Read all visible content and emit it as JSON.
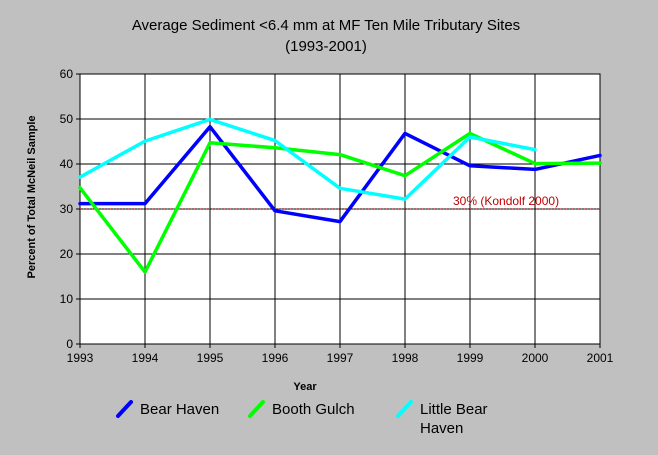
{
  "chart_data": {
    "type": "line",
    "title": "Average Sediment <6.4 mm at MF Ten Mile Tributary Sites",
    "subtitle": "(1993-2001)",
    "xlabel": "Year",
    "ylabel": "Percent of Total McNeil Sample",
    "x": [
      "1993",
      "1994",
      "1995",
      "1996",
      "1997",
      "1998",
      "1999",
      "2000",
      "2001"
    ],
    "yticks": [
      "0",
      "10",
      "20",
      "30",
      "40",
      "50",
      "60"
    ],
    "ylim": [
      0,
      60
    ],
    "grid": true,
    "legend_position": "bottom",
    "series": [
      {
        "name": "Bear Haven",
        "color": "#0000ff",
        "values": [
          31.2,
          31.2,
          48.3,
          29.6,
          27.2,
          46.8,
          39.6,
          38.8,
          41.9
        ]
      },
      {
        "name": "Booth Gulch",
        "color": "#00ff00",
        "values": [
          34.7,
          16.0,
          44.7,
          43.6,
          42.1,
          37.4,
          46.8,
          40.1,
          40.2
        ]
      },
      {
        "name": "Little Bear Haven",
        "color": "#00ffff",
        "values": [
          37.1,
          45.1,
          49.9,
          45.2,
          34.6,
          32.2,
          46.0,
          43.2,
          null
        ]
      }
    ],
    "reference_line": {
      "value": 30,
      "label": "30% (Kondolf 2000)",
      "color": "#c00000"
    }
  },
  "legend": {
    "items": [
      {
        "label_lines": [
          "Bear Haven"
        ],
        "color": "#0000ff"
      },
      {
        "label_lines": [
          "Booth Gulch"
        ],
        "color": "#00ff00"
      },
      {
        "label_lines": [
          "Little Bear",
          "Haven"
        ],
        "color": "#00ffff"
      }
    ]
  }
}
